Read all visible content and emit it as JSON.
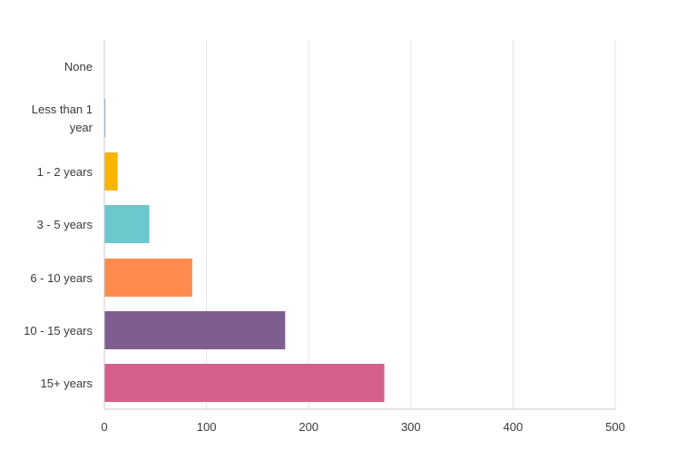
{
  "chart_data": {
    "type": "bar",
    "orientation": "horizontal",
    "categories": [
      [
        "None"
      ],
      [
        "Less than 1",
        "year"
      ],
      [
        "1 - 2 years"
      ],
      [
        "3 - 5 years"
      ],
      [
        "6 - 10 years"
      ],
      [
        "10 - 15 years"
      ],
      [
        "15+ years"
      ]
    ],
    "values": [
      0,
      1,
      13,
      44,
      86,
      177,
      274
    ],
    "colors": [
      "#6aa2c4",
      "#6aa2c4",
      "#f7b500",
      "#6bc8cd",
      "#ff8b4f",
      "#7d5e8f",
      "#d45f8d"
    ],
    "xlim": [
      0,
      500
    ],
    "xticks": [
      0,
      100,
      200,
      300,
      400,
      500
    ],
    "grid": true,
    "title": "",
    "xlabel": "",
    "ylabel": ""
  }
}
